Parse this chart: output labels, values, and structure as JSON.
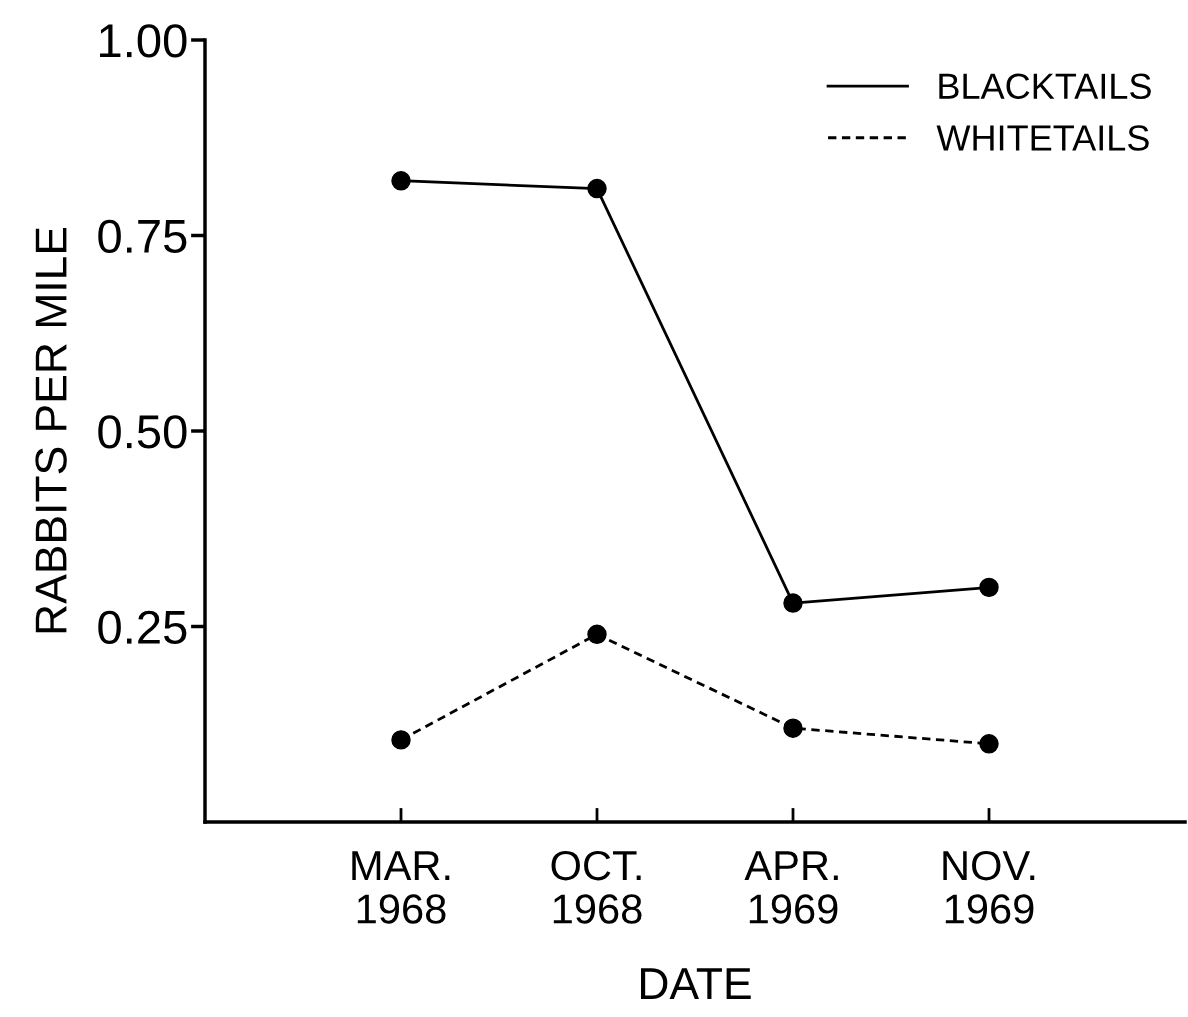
{
  "chart_data": {
    "type": "line",
    "xlabel": "DATE",
    "ylabel": "RABBITS PER MILE",
    "categories": [
      "MAR.\n1968",
      "OCT.\n1968",
      "APR.\n1969",
      "NOV.\n1969"
    ],
    "series": [
      {
        "name": "BLACKTAILS",
        "color": "#000000",
        "line_style": "solid",
        "values": [
          0.82,
          0.81,
          0.28,
          0.3
        ]
      },
      {
        "name": "WHITETAILS",
        "color": "#000000",
        "line_style": "dashed",
        "values": [
          0.105,
          0.24,
          0.12,
          0.1
        ]
      }
    ],
    "ylim": [
      0,
      1.0
    ],
    "yticks": [
      {
        "value": 0.25,
        "label": "0.25"
      },
      {
        "value": 0.5,
        "label": "0.50"
      },
      {
        "value": 0.75,
        "label": "0.75"
      },
      {
        "value": 1.0,
        "label": "1.00"
      }
    ],
    "marker": "circle",
    "grid": false,
    "legend": "top right"
  }
}
